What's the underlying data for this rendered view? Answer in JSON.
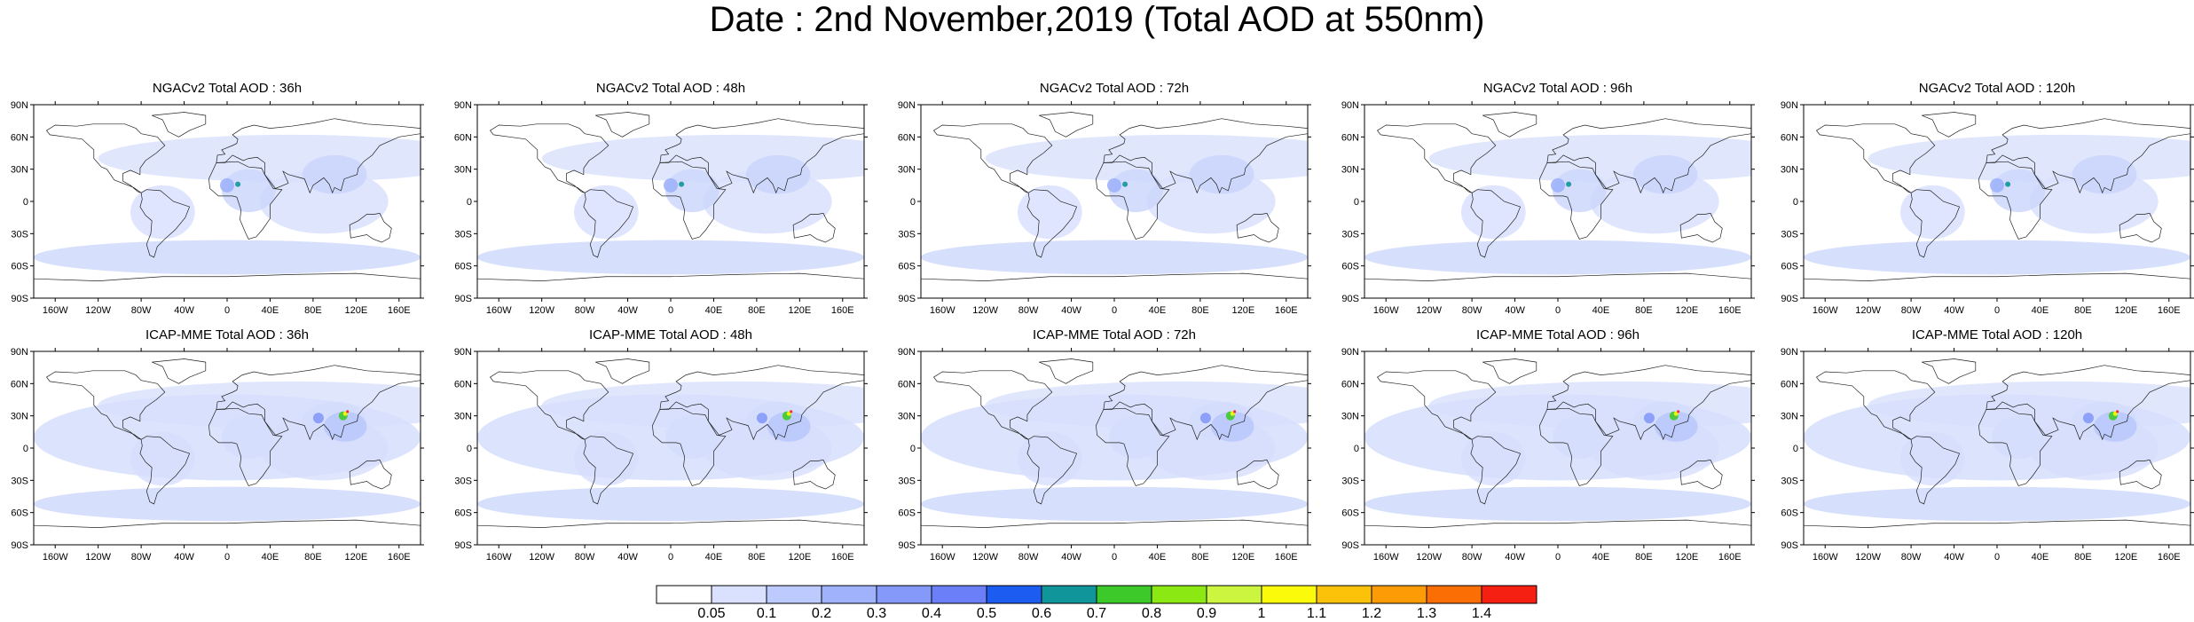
{
  "figure_title": "Date : 2nd November,2019 (Total AOD at 550nm)",
  "panels": [
    {
      "title": "NGACv2 Total AOD : 36h"
    },
    {
      "title": "NGACv2 Total AOD : 48h"
    },
    {
      "title": "NGACv2 Total AOD : 72h"
    },
    {
      "title": "NGACv2 Total AOD : 96h"
    },
    {
      "title": "NGACv2 Total AOD : 120h"
    },
    {
      "title": "ICAP-MME Total AOD : 36h"
    },
    {
      "title": "ICAP-MME Total AOD : 48h"
    },
    {
      "title": "ICAP-MME Total AOD : 72h"
    },
    {
      "title": "ICAP-MME Total AOD : 96h"
    },
    {
      "title": "ICAP-MME Total AOD : 120h"
    }
  ],
  "lat_labels": [
    "90N",
    "60N",
    "30N",
    "0",
    "30S",
    "60S",
    "90S"
  ],
  "lon_labels": [
    "160W",
    "120W",
    "80W",
    "40W",
    "0",
    "40E",
    "80E",
    "120E",
    "160E"
  ],
  "colorbar": {
    "levels": [
      "0.05",
      "0.1",
      "0.2",
      "0.3",
      "0.4",
      "0.5",
      "0.6",
      "0.7",
      "0.8",
      "0.9",
      "1",
      "1.1",
      "1.2",
      "1.3",
      "1.4"
    ],
    "colors": [
      "#ffffff",
      "#d9e1ff",
      "#bccafd",
      "#9fb2fb",
      "#8599fa",
      "#6b7ff8",
      "#1c5cf0",
      "#10959a",
      "#3ec92a",
      "#8be813",
      "#cbf53e",
      "#fafa0a",
      "#fcc20a",
      "#fc9b06",
      "#fb6e04",
      "#f51f12"
    ]
  }
}
